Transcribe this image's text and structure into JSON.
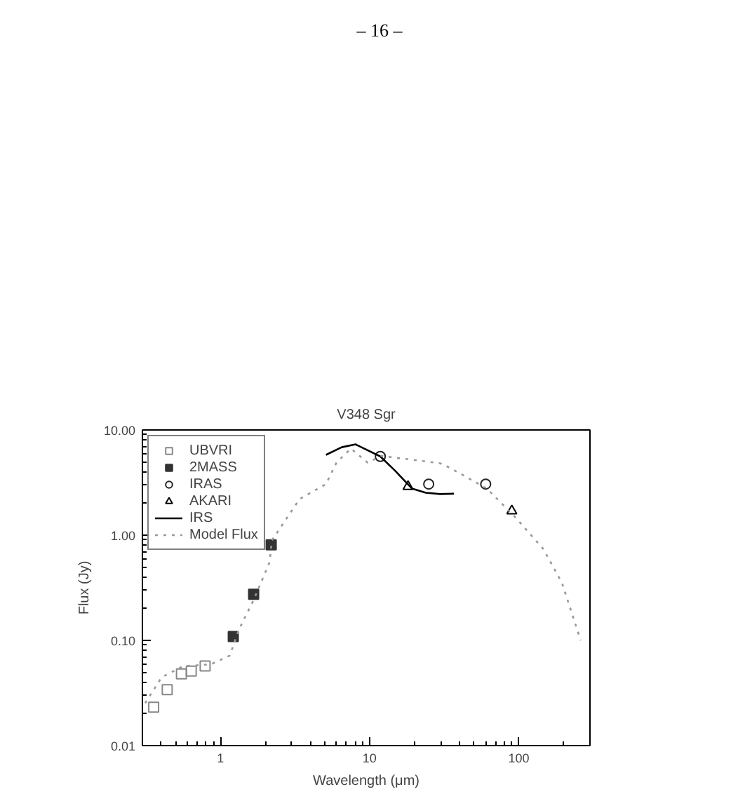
{
  "chart_data": {
    "type": "scatter",
    "title": "V348 Sgr",
    "xlabel": "Wavelength (μm)",
    "ylabel": "Flux (Jy)",
    "annotations": [
      "– 16 –"
    ],
    "log": "xy",
    "grid": false,
    "legend": "top left",
    "xlim": [
      0.3,
      300
    ],
    "ylim": [
      0.01,
      10
    ],
    "xticks": [
      1,
      10,
      100
    ],
    "yticks": [
      {
        "value": 0.01,
        "label": "0.01"
      },
      {
        "value": 0.1,
        "label": "0.10"
      },
      {
        "value": 1,
        "label": "1.00"
      },
      {
        "value": 10,
        "label": "10.00"
      }
    ],
    "series": [
      {
        "name": "UBVRI",
        "marker": "square",
        "color": "#888888",
        "x": [
          0.357,
          0.44,
          0.548,
          0.638,
          0.79
        ],
        "values": [
          0.0232,
          0.034,
          0.048,
          0.051,
          0.057
        ]
      },
      {
        "name": "2MASS",
        "marker": "square",
        "color": "#333333",
        "x": [
          1.22,
          1.67,
          2.19
        ],
        "values": [
          0.109,
          0.274,
          0.81
        ]
      },
      {
        "name": "IRAS",
        "marker": "circle",
        "color": "#222222",
        "x": [
          11.8,
          24.9,
          60
        ],
        "values": [
          5.6,
          3.06,
          3.06
        ]
      },
      {
        "name": "AKARI",
        "marker": "triangle",
        "color": "#000000",
        "x": [
          18.1,
          89.8
        ],
        "values": [
          2.9,
          1.7
        ]
      },
      {
        "name": "IRS",
        "type": "line",
        "line_style": "solid",
        "color": "#000000",
        "x": [
          5.1,
          6.5,
          8.05,
          11.8,
          14.9,
          19.2,
          23.8,
          29.6,
          36.8
        ],
        "values": [
          5.8,
          6.85,
          7.3,
          5.6,
          4.07,
          2.78,
          2.53,
          2.46,
          2.48
        ]
      },
      {
        "name": "Model Flux",
        "type": "line",
        "line_style": "dotted",
        "color": "#999999",
        "x": [
          0.313,
          0.404,
          0.56,
          0.865,
          1.156,
          1.33,
          1.66,
          2.14,
          2.21,
          3.39,
          5.1,
          6.0,
          7.5,
          9.7,
          12,
          29.6,
          34.3,
          61,
          94,
          146,
          195,
          260
        ],
        "values": [
          0.0253,
          0.0446,
          0.0566,
          0.0593,
          0.0718,
          0.127,
          0.237,
          0.557,
          0.89,
          2.2,
          3.06,
          4.9,
          6.65,
          4.9,
          5.66,
          4.83,
          4.39,
          2.78,
          1.5,
          0.74,
          0.35,
          0.1
        ]
      }
    ]
  }
}
